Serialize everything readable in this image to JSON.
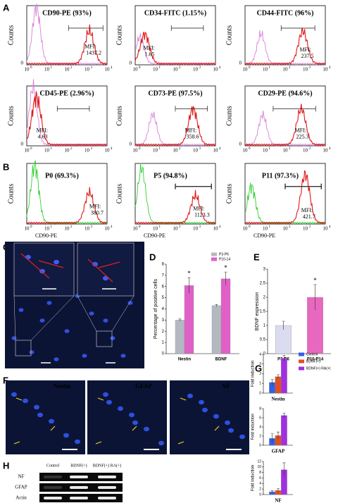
{
  "panel_labels": [
    "A",
    "B",
    "C",
    "D",
    "E",
    "F",
    "G",
    "H"
  ],
  "flow_axis": {
    "y_label": "Counts",
    "origin": "0",
    "base": "10",
    "exponents": [
      "0",
      "1",
      "2",
      "3",
      "4"
    ],
    "x_label": "CD90-PE",
    "mfi_label": "MFI:"
  },
  "flow_a": [
    {
      "title": "CD90-PE (93%)",
      "mfi": 1437.2
    },
    {
      "title": "CD34-FITC (1.15%)",
      "mfi": 1.65
    },
    {
      "title": "CD44-FITC (96%)",
      "mfi": 237.5
    },
    {
      "title": "CD45-PE (2.96%)",
      "mfi": 4.63
    },
    {
      "title": "CD73-PE (97.5%)",
      "mfi": 358.6
    },
    {
      "title": "CD29-PE (94.6%)",
      "mfi": 225.3
    }
  ],
  "flow_b": [
    {
      "title": "P0 (69.3%)",
      "mfi": 380.7
    },
    {
      "title": "P5 (94.8%)",
      "mfi": 1123.3
    },
    {
      "title": "P11 (97.3%)",
      "mfi": 421.7
    }
  ],
  "chart_data": [
    {
      "type": "bar",
      "categories": [
        "Nestin",
        "BDNF"
      ],
      "series": [
        {
          "name": "P3-P6",
          "color": "#b4b8c0",
          "values": [
            3.0,
            4.3
          ],
          "errors": [
            0.1,
            0.1
          ]
        },
        {
          "name": "P10-14",
          "color": "#e060c8",
          "values": [
            6.1,
            6.7
          ],
          "errors": [
            0.7,
            0.6
          ],
          "significance": [
            "*",
            "*"
          ]
        }
      ],
      "ylim": [
        0,
        8
      ],
      "yticks": [
        0,
        1,
        2,
        3,
        4,
        5,
        6,
        7,
        8
      ],
      "y_label": "Percentage of positive cells",
      "legend": "top-right"
    },
    {
      "type": "bar",
      "categories": [
        "P3-P6",
        "P10-P14"
      ],
      "values": [
        1.0,
        2.0
      ],
      "errors": [
        0.15,
        0.45
      ],
      "colors": [
        "#dcdcf0",
        "#e868c0"
      ],
      "significance": [
        null,
        "*"
      ],
      "ylim": [
        0,
        3
      ],
      "yticks": [
        0,
        0.5,
        1,
        1.5,
        2,
        2.5,
        3
      ],
      "y_label": "BDNF expression"
    },
    {
      "type": "bar",
      "x_label": "Nestin",
      "y_label": "Fold induction",
      "legend": "right",
      "series": [
        {
          "name": "Control",
          "color": "#3060e8",
          "values": [
            1.1
          ],
          "errors": [
            0.3
          ]
        },
        {
          "name": "BDNF(+)",
          "color": "#e05020",
          "values": [
            1.7
          ],
          "errors": [
            0.2
          ]
        },
        {
          "name": "BDNF(+) RA(+)",
          "color": "#a030e0",
          "values": [
            3.6
          ],
          "errors": [
            0.3
          ]
        }
      ],
      "ylim": [
        0,
        4
      ],
      "yticks": [
        0,
        1,
        2,
        3,
        4
      ]
    },
    {
      "type": "bar",
      "x_label": "GFAP",
      "y_label": "Fold induction",
      "series": [
        {
          "color": "#3060e8",
          "values": [
            1.5
          ],
          "errors": [
            1.0
          ]
        },
        {
          "color": "#e05020",
          "values": [
            2.1
          ],
          "errors": [
            0.8
          ]
        },
        {
          "color": "#a030e0",
          "values": [
            6.5
          ],
          "errors": [
            0.5
          ]
        }
      ],
      "ylim": [
        0,
        8
      ],
      "yticks": [
        0,
        2,
        4,
        6,
        8
      ]
    },
    {
      "type": "bar",
      "x_label": "NF",
      "y_label": "Fold induction",
      "series": [
        {
          "color": "#3060e8",
          "values": [
            1.0
          ],
          "errors": [
            0.4
          ]
        },
        {
          "color": "#e05020",
          "values": [
            1.5
          ],
          "errors": [
            0.6
          ]
        },
        {
          "color": "#a030e0",
          "values": [
            9.0
          ],
          "errors": [
            2.5
          ]
        }
      ],
      "ylim": [
        0,
        12
      ],
      "yticks": [
        0,
        2,
        4,
        6,
        8,
        10,
        12
      ]
    }
  ],
  "panel_f": {
    "labels": [
      "Nestin",
      "GFAP",
      "NF"
    ]
  },
  "panel_h": {
    "columns": [
      "Control",
      "BDNF(+)",
      "BDNF(+) RA(+)"
    ],
    "rows": [
      "NF",
      "GFAP",
      "Actin"
    ]
  }
}
